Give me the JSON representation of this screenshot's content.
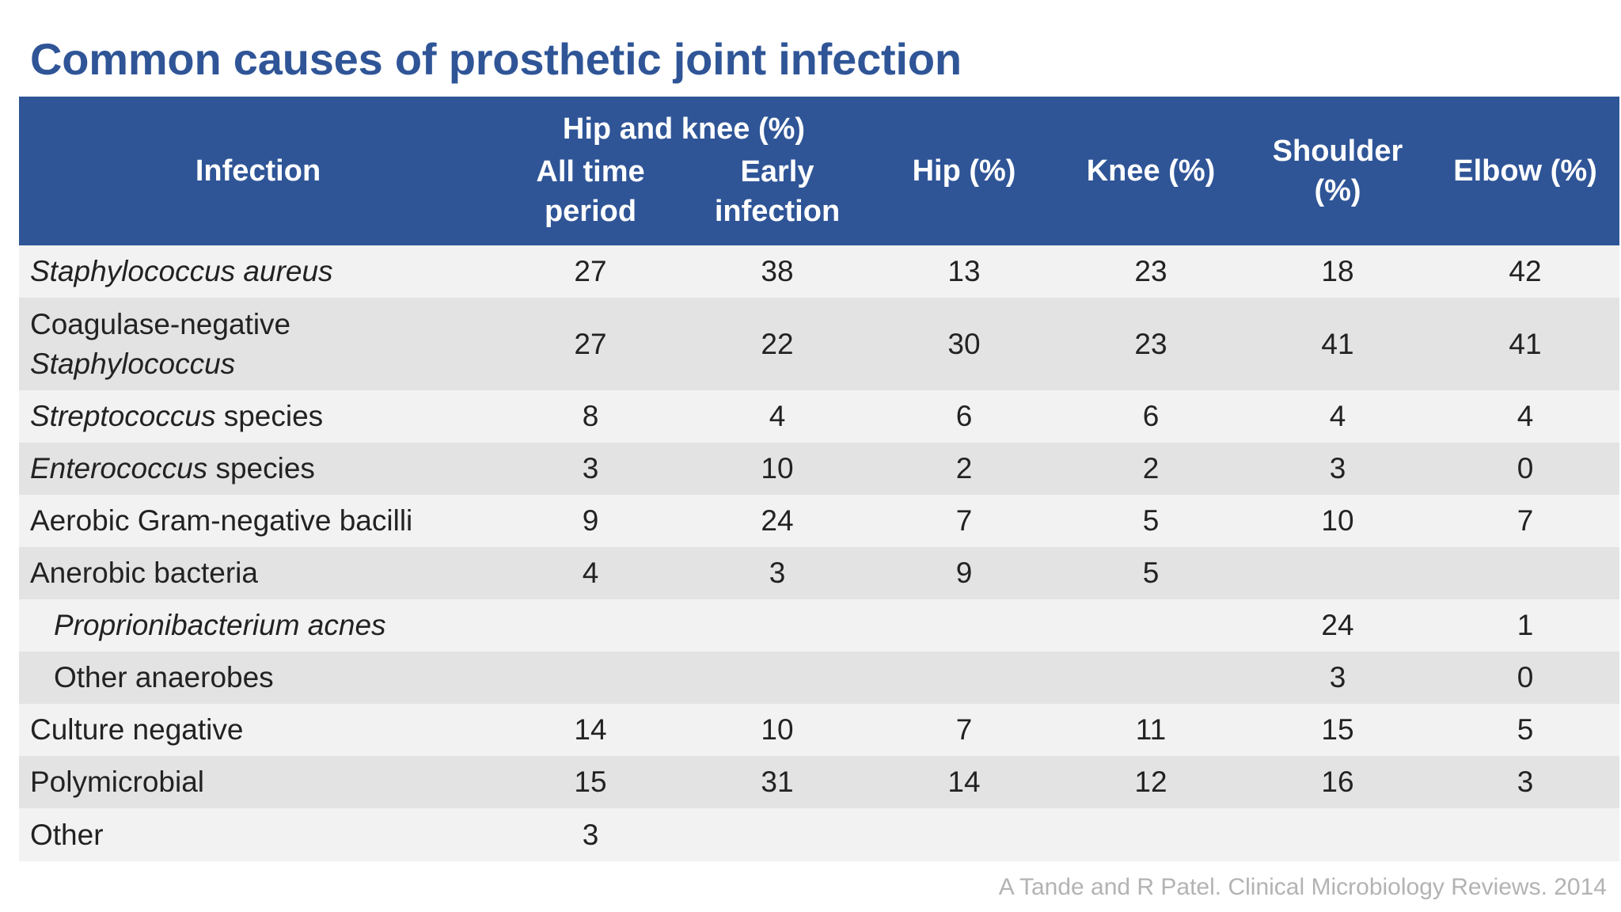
{
  "title": "Common causes of prosthetic joint infection",
  "header": {
    "infection": "Infection",
    "group_hip_knee": "Hip and knee (%)",
    "all_time_line1": "All time",
    "all_time_line2": "period",
    "early_line1": "Early",
    "early_line2": "infection",
    "hip": "Hip (%)",
    "knee": "Knee (%)",
    "shoulder_line1": "Shoulder",
    "shoulder_line2": "(%)",
    "elbow": "Elbow (%)"
  },
  "rows": [
    {
      "name_italic": "Staphylococcus aureus",
      "name_plain": "",
      "values": [
        "27",
        "38",
        "13",
        "23",
        "18",
        "42"
      ]
    },
    {
      "name_plain": "Coagulase-negative",
      "name_italic": "Staphylococcus",
      "values": [
        "27",
        "22",
        "30",
        "23",
        "41",
        "41"
      ]
    },
    {
      "name_italic": "Streptococcus",
      "name_plain": " species",
      "values": [
        "8",
        "4",
        "6",
        "6",
        "4",
        "4"
      ]
    },
    {
      "name_italic": "Enterococcus",
      "name_plain": " species",
      "values": [
        "3",
        "10",
        "2",
        "2",
        "3",
        "0"
      ]
    },
    {
      "name_italic": "",
      "name_plain": "Aerobic Gram-negative bacilli",
      "values": [
        "9",
        "24",
        "7",
        "5",
        "10",
        "7"
      ]
    },
    {
      "name_italic": "",
      "name_plain": "Anerobic bacteria",
      "values": [
        "4",
        "3",
        "9",
        "5",
        "",
        ""
      ]
    },
    {
      "name_italic": "Proprionibacterium acnes",
      "name_plain": "",
      "values": [
        "",
        "",
        "",
        "",
        "24",
        "1"
      ]
    },
    {
      "name_italic": "",
      "name_plain": "Other anaerobes",
      "values": [
        "",
        "",
        "",
        "",
        "3",
        "0"
      ]
    },
    {
      "name_italic": "",
      "name_plain": "Culture negative",
      "values": [
        "14",
        "10",
        "7",
        "11",
        "15",
        "5"
      ]
    },
    {
      "name_italic": "",
      "name_plain": "Polymicrobial",
      "values": [
        "15",
        "31",
        "14",
        "12",
        "16",
        "3"
      ]
    },
    {
      "name_italic": "",
      "name_plain": "Other",
      "values": [
        "3",
        "",
        "",
        "",
        "",
        ""
      ]
    }
  ],
  "source": "A Tande and R Patel. Clinical Microbiology Reviews. 2014",
  "colors": {
    "title": "#2f5597",
    "header_bg": "#2f5597",
    "row_light": "#f2f2f2",
    "row_dark": "#e3e3e3",
    "source_text": "#b3b3b3"
  }
}
